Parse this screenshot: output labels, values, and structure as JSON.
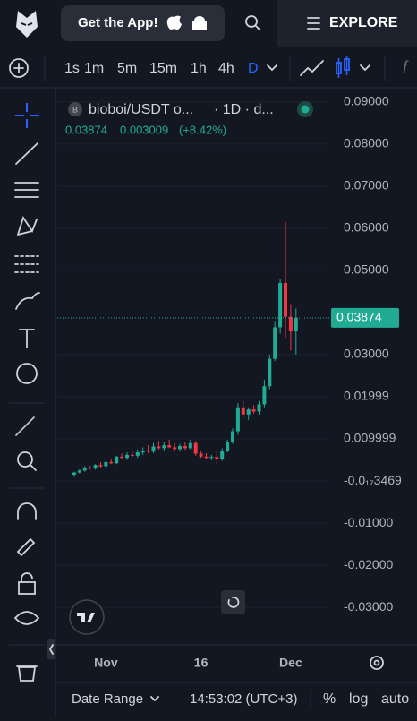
{
  "ui": {
    "app_button": "Get the App!",
    "explore": "EXPLORE",
    "intervals": [
      "1s",
      "1m",
      "5m",
      "15m",
      "1h",
      "4h",
      "D"
    ],
    "symbol_badge": "B",
    "symbol": "bioboi/USDT o...",
    "symbol_info": "· 1D · d...",
    "change": 0.003009,
    "change_pct": "(+8.42%)",
    "date_range": "Date Range",
    "clock": "14:53:02 (UTC+3)",
    "percent": "%",
    "log": "log",
    "auto": "auto"
  },
  "chart_data": {
    "type": "candlestick",
    "categories": [
      null,
      null,
      null,
      null,
      null,
      null,
      "Nov",
      null,
      null,
      null,
      null,
      null,
      null,
      null,
      null,
      null,
      null,
      null,
      null,
      null,
      null,
      null,
      null,
      null,
      "16",
      null,
      null,
      null,
      null,
      null,
      null,
      null,
      null,
      null,
      null,
      null,
      null,
      null,
      null,
      null,
      null,
      "Dec",
      null
    ],
    "open": [
      0.0015,
      0.002,
      0.0025,
      0.0032,
      0.003,
      0.0038,
      0.0035,
      0.0045,
      0.0042,
      0.0058,
      0.0055,
      0.0062,
      0.006,
      0.0068,
      0.0072,
      0.007,
      0.0082,
      0.0078,
      0.0085,
      0.008,
      0.0076,
      0.0083,
      0.0078,
      0.009,
      0.0065,
      0.0058,
      0.0055,
      0.0057,
      0.0052,
      0.0072,
      0.0092,
      0.0118,
      0.0175,
      0.0158,
      0.017,
      0.0165,
      0.0182,
      0.0225,
      0.029,
      0.0365,
      0.047,
      0.039,
      0.0355
    ],
    "high": [
      0.0022,
      0.0028,
      0.0035,
      0.0036,
      0.004,
      0.0045,
      0.0048,
      0.0052,
      0.006,
      0.0065,
      0.0068,
      0.007,
      0.0075,
      0.008,
      0.0085,
      0.009,
      0.0095,
      0.0092,
      0.0098,
      0.009,
      0.0088,
      0.0092,
      0.0098,
      0.0095,
      0.0072,
      0.0066,
      0.0062,
      0.007,
      0.0078,
      0.0098,
      0.0125,
      0.0185,
      0.019,
      0.0175,
      0.018,
      0.019,
      0.024,
      0.03,
      0.038,
      0.048,
      0.0615,
      0.042,
      0.041
    ],
    "low": [
      0.001,
      0.0018,
      0.0022,
      0.0028,
      0.0027,
      0.003,
      0.0033,
      0.004,
      0.004,
      0.0052,
      0.005,
      0.0058,
      0.0055,
      0.0062,
      0.0066,
      0.0066,
      0.0075,
      0.0072,
      0.0078,
      0.0072,
      0.007,
      0.0074,
      0.0075,
      0.006,
      0.0055,
      0.0052,
      0.005,
      0.004,
      0.0048,
      0.0068,
      0.0088,
      0.011,
      0.015,
      0.0145,
      0.016,
      0.0158,
      0.0175,
      0.0218,
      0.0285,
      0.035,
      0.034,
      0.031,
      0.03
    ],
    "close": [
      0.002,
      0.0025,
      0.0032,
      0.003,
      0.0038,
      0.0035,
      0.0045,
      0.0042,
      0.0058,
      0.0055,
      0.0062,
      0.006,
      0.0068,
      0.0072,
      0.007,
      0.0082,
      0.0078,
      0.0085,
      0.008,
      0.0076,
      0.0083,
      0.0078,
      0.009,
      0.0065,
      0.0058,
      0.0055,
      0.0057,
      0.0052,
      0.0072,
      0.0092,
      0.0118,
      0.0175,
      0.0158,
      0.017,
      0.0165,
      0.0182,
      0.0225,
      0.029,
      0.0365,
      0.047,
      0.039,
      0.0355,
      0.03874
    ],
    "up_color": "#22ab94",
    "down_color": "#f23645",
    "ylim": [
      -0.0389,
      0.094
    ],
    "yticks": [
      {
        "value": 0.09,
        "label": "0.09000"
      },
      {
        "value": 0.08,
        "label": "0.08000"
      },
      {
        "value": 0.07,
        "label": "0.07000"
      },
      {
        "value": 0.06,
        "label": "0.06000"
      },
      {
        "value": 0.05,
        "label": "0.05000"
      },
      {
        "value": 0.03,
        "label": "0.03000"
      },
      {
        "value": 0.02,
        "label": "0.01999"
      },
      {
        "value": 0.01,
        "label": "0.009999"
      },
      {
        "value": 0,
        "label": "-0.0₁₇3469"
      },
      {
        "value": -0.01,
        "label": "-0.01000"
      },
      {
        "value": -0.02,
        "label": "-0.02000"
      },
      {
        "value": -0.03,
        "label": "-0.03000"
      }
    ],
    "grid": true
  }
}
